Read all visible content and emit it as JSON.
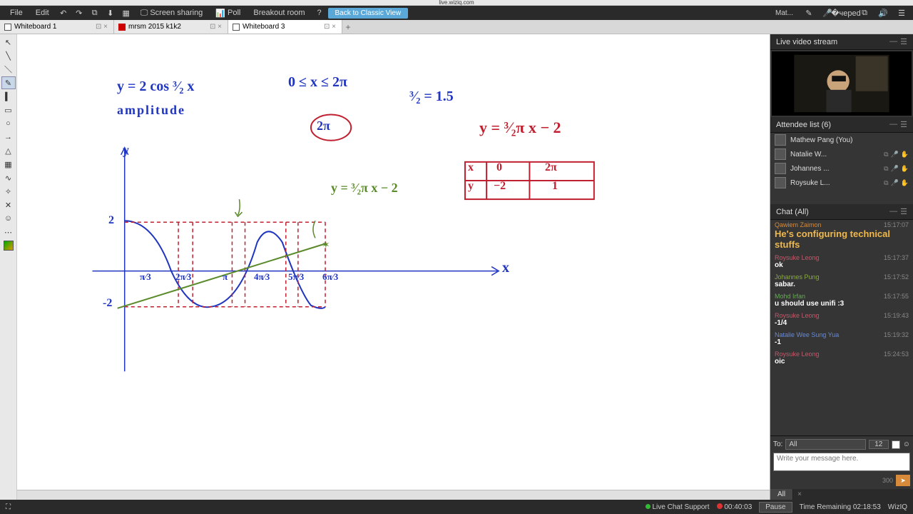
{
  "url": "live.wiziq.com",
  "menu": {
    "file": "File",
    "edit": "Edit",
    "screenshare": "Screen sharing",
    "poll": "Poll",
    "breakout": "Breakout room",
    "back_classic": "Back to Classic View",
    "user": "Mat..."
  },
  "tabs": [
    {
      "label": "Whiteboard 1",
      "type": "wb"
    },
    {
      "label": "mrsm 2015 k1k2",
      "type": "pdf"
    },
    {
      "label": "Whiteboard 3",
      "type": "wb",
      "active": true
    }
  ],
  "whiteboard": {
    "ink_blue": "#2035c0",
    "ink_red": "#c02030",
    "ink_green": "#5a8a2a",
    "eq1": "y = 2 cos ³⁄₂ x",
    "amp": "amplitude",
    "domain": "0 ≤ x ≤ 2π",
    "circled": "2π",
    "frac15": "³⁄₂ = 1.5",
    "line_eq_red": "y = ³⁄₂π x − 2",
    "line_eq_green": "y = ³⁄₂π x − 2",
    "table": {
      "hx": "x",
      "h0": "0",
      "h2pi": "2π",
      "hy": "y",
      "vneg2": "−2",
      "v1": "1"
    },
    "axes": {
      "y_label": "y",
      "x_label": "x",
      "ymax": "2",
      "ymin": "-2",
      "ticks": [
        "π⁄3",
        "2π⁄3",
        "π",
        "4π⁄3",
        "5π⁄3",
        "6π⁄3"
      ]
    }
  },
  "video_title": "Live video stream",
  "attendees": {
    "title": "Attendee list (6)",
    "me": "Mathew Pang (You)",
    "list": [
      "Natalie W...",
      "Johannes ...",
      "Roysuke L..."
    ]
  },
  "chat": {
    "title": "Chat (All)",
    "msgs": [
      {
        "author": "Qawiem Zaimon",
        "color": "#d78a3a",
        "time": "15:17:07",
        "text": "He's configuring technical stuffs",
        "big": true
      },
      {
        "author": "Roysuke Leong",
        "color": "#c05a6a",
        "time": "15:17:37",
        "text": "ok"
      },
      {
        "author": "Johannes Pung",
        "color": "#8aa84a",
        "time": "15:17:52",
        "text": "sabar."
      },
      {
        "author": "Mohd Irfan",
        "color": "#6aa85a",
        "time": "15:17:55",
        "text": "u should use unifi :3"
      },
      {
        "author": "Roysuke Leong",
        "color": "#c05a6a",
        "time": "15:19:43",
        "text": "-1/4"
      },
      {
        "author": "Natalie Wee Sung Yua",
        "color": "#6a8ad0",
        "time": "15:19:32",
        "text": "-1"
      },
      {
        "author": "Roysuke Leong",
        "color": "#c05a6a",
        "time": "15:24:53",
        "text": "oic"
      }
    ],
    "to_label": "To:",
    "to_value": "All",
    "font_size": "12",
    "placeholder": "Write your message here.",
    "char_limit": "300",
    "tab_all": "All"
  },
  "footer": {
    "support": "Live Chat Support",
    "elapsed_label": "00:40:03",
    "pause": "Pause",
    "remaining_label": "Time Remaining",
    "remaining": "02:18:53",
    "brand": "WizIQ"
  }
}
